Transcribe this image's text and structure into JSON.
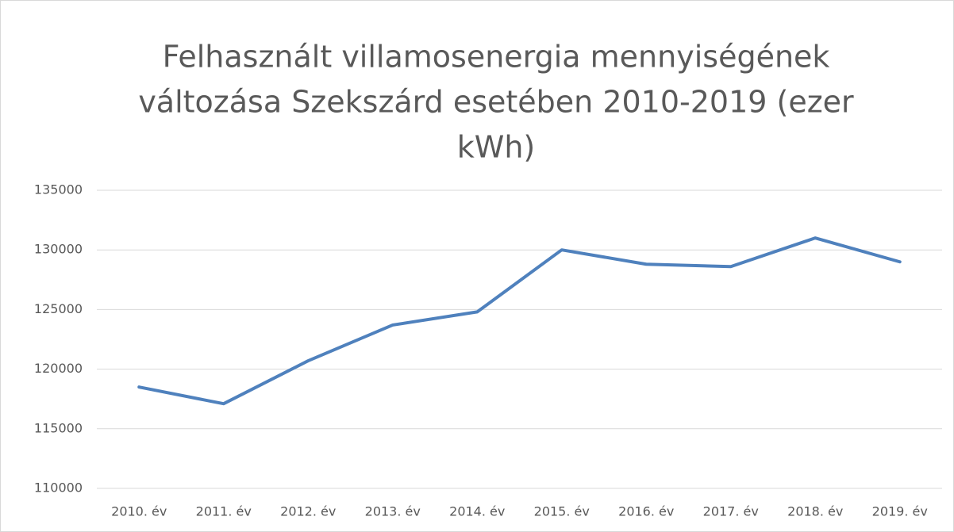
{
  "chart_data": {
    "type": "line",
    "title": [
      "Felhasznált villamosenergia mennyiségének",
      "változása Szekszárd esetében 2010-2019 (ezer",
      "kWh)"
    ],
    "categories": [
      "2010. év",
      "2011. év",
      "2012. év",
      "2013. év",
      "2014. év",
      "2015. év",
      "2016. év",
      "2017. év",
      "2018. év",
      "2019. év"
    ],
    "values": [
      118500,
      117100,
      120700,
      123700,
      124800,
      130000,
      128800,
      128600,
      131000,
      129000
    ],
    "color": "#4f81bd",
    "ylim": [
      110000,
      135000
    ],
    "yticks": [
      110000,
      115000,
      120000,
      125000,
      130000,
      135000
    ],
    "grid": true
  }
}
